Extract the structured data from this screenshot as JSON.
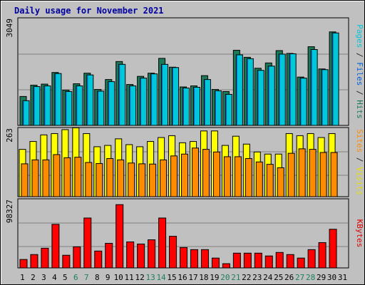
{
  "chart_data": [
    {
      "type": "bar",
      "title": "Daily usage for November 2021",
      "max_label": "3049",
      "y_axis_label_parts": [
        {
          "text": "Pages",
          "color": "#00c8d8"
        },
        {
          "text": " / ",
          "color": "#2a2a2a"
        },
        {
          "text": "Files",
          "color": "#0060e0"
        },
        {
          "text": " / ",
          "color": "#2a2a2a"
        },
        {
          "text": "Hits",
          "color": "#1a7a58"
        }
      ],
      "ylim": [
        0,
        3049
      ],
      "categories": [
        "1",
        "2",
        "3",
        "4",
        "5",
        "6",
        "7",
        "8",
        "9",
        "10",
        "11",
        "12",
        "13",
        "14",
        "15",
        "16",
        "17",
        "18",
        "19",
        "20",
        "21",
        "22",
        "23",
        "24",
        "25",
        "26",
        "27",
        "28",
        "29",
        "30",
        "31"
      ],
      "weekend_days": [
        "6",
        "7",
        "13",
        "14",
        "20",
        "21",
        "27",
        "28"
      ],
      "series": [
        {
          "name": "Hits",
          "color": "#1a7a58",
          "values": [
            820,
            1140,
            1170,
            1500,
            1000,
            1180,
            1480,
            1020,
            1300,
            1810,
            1160,
            1390,
            1480,
            1900,
            1650,
            1090,
            1120,
            1410,
            1020,
            960,
            2130,
            1930,
            1620,
            1770,
            2120,
            2040,
            1370,
            2230,
            1600,
            2650,
            null
          ]
        },
        {
          "name": "Files",
          "color": "#0060e0",
          "values": [
            700,
            1100,
            1120,
            1470,
            960,
            1120,
            1430,
            970,
            1240,
            1730,
            1120,
            1340,
            1460,
            1730,
            1640,
            1060,
            1080,
            1300,
            980,
            880,
            2000,
            1890,
            1560,
            1680,
            2020,
            2030,
            1340,
            2150,
            1580,
            2620,
            null
          ]
        },
        {
          "name": "Pages",
          "color": "#00c8d8",
          "values": [
            700,
            1100,
            1120,
            1470,
            960,
            1120,
            1430,
            970,
            1240,
            1730,
            1120,
            1340,
            1460,
            1730,
            1640,
            1060,
            1080,
            1300,
            980,
            880,
            2000,
            1890,
            1560,
            1680,
            2020,
            2030,
            1340,
            2150,
            1580,
            2620,
            null
          ]
        }
      ]
    },
    {
      "type": "bar",
      "max_label": "263",
      "y_axis_label_parts": [
        {
          "text": "Sites",
          "color": "#ff8c00"
        },
        {
          "text": " / ",
          "color": "#2a2a2a"
        },
        {
          "text": "Visits",
          "color": "#e8e000"
        }
      ],
      "ylim": [
        0,
        263
      ],
      "categories": [
        "1",
        "2",
        "3",
        "4",
        "5",
        "6",
        "7",
        "8",
        "9",
        "10",
        "11",
        "12",
        "13",
        "14",
        "15",
        "16",
        "17",
        "18",
        "19",
        "20",
        "21",
        "22",
        "23",
        "24",
        "25",
        "26",
        "27",
        "28",
        "29",
        "30",
        "31"
      ],
      "series": [
        {
          "name": "Visits",
          "color": "#ffff00",
          "values": [
            180,
            210,
            235,
            240,
            255,
            262,
            240,
            190,
            195,
            220,
            198,
            190,
            210,
            225,
            232,
            205,
            210,
            250,
            250,
            195,
            230,
            200,
            170,
            162,
            162,
            240,
            232,
            240,
            225,
            240,
            null
          ]
        },
        {
          "name": "Sites",
          "color": "#ff8c00",
          "values": [
            125,
            140,
            140,
            160,
            148,
            150,
            130,
            126,
            145,
            140,
            128,
            125,
            124,
            140,
            155,
            162,
            185,
            180,
            170,
            152,
            152,
            145,
            132,
            123,
            110,
            165,
            182,
            180,
            168,
            168,
            null
          ]
        }
      ]
    },
    {
      "type": "bar",
      "max_label": "98327",
      "y_axis_label_parts": [
        {
          "text": "KBytes",
          "color": "#e00000"
        }
      ],
      "ylim": [
        0,
        98327
      ],
      "categories": [
        "1",
        "2",
        "3",
        "4",
        "5",
        "6",
        "7",
        "8",
        "9",
        "10",
        "11",
        "12",
        "13",
        "14",
        "15",
        "16",
        "17",
        "18",
        "19",
        "20",
        "21",
        "22",
        "23",
        "24",
        "25",
        "26",
        "27",
        "28",
        "29",
        "30",
        "31"
      ],
      "series": [
        {
          "name": "KBytes",
          "color": "#ff0000",
          "values": [
            12000,
            19000,
            28000,
            62000,
            18000,
            30000,
            71000,
            24000,
            35000,
            90000,
            37000,
            34000,
            40000,
            71000,
            45000,
            29000,
            26000,
            26000,
            14000,
            6000,
            21000,
            21000,
            21000,
            17000,
            22000,
            19000,
            14000,
            26000,
            36000,
            55000,
            null
          ]
        }
      ]
    }
  ]
}
